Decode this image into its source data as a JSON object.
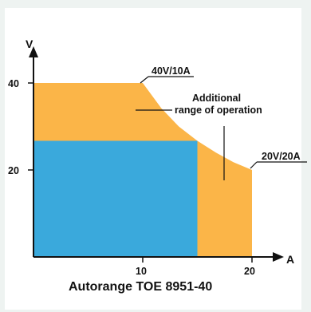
{
  "title": "Autorange TOE 8951-40",
  "axes": {
    "y_label": "V",
    "x_label": "A",
    "y_ticks": [
      "20",
      "40"
    ],
    "x_ticks": [
      "10",
      "20"
    ]
  },
  "annotations": {
    "corner_high": "40V/10A",
    "corner_low": "20V/20A",
    "extra_line1": "Additional",
    "extra_line2": "range of operation"
  },
  "chart_data": {
    "type": "area",
    "title": "Autorange TOE 8951-40",
    "xlabel": "A",
    "ylabel": "V",
    "xlim": [
      0,
      20
    ],
    "ylim": [
      0,
      40
    ],
    "series": [
      {
        "values": [
          [
            0,
            40
          ],
          [
            10,
            40
          ],
          [
            11.7,
            34.2
          ],
          [
            13.3,
            30
          ],
          [
            15,
            26.7
          ],
          [
            16.7,
            24
          ],
          [
            18.3,
            21.8
          ],
          [
            20,
            20
          ],
          [
            20,
            0
          ]
        ]
      },
      {
        "values": [
          [
            0,
            26.7
          ],
          [
            15,
            26.7
          ],
          [
            15,
            0
          ]
        ]
      }
    ],
    "colors": {
      "additional_range": "#fbb548",
      "base_range": "#3aa9dc",
      "background": "#ffffff"
    }
  }
}
